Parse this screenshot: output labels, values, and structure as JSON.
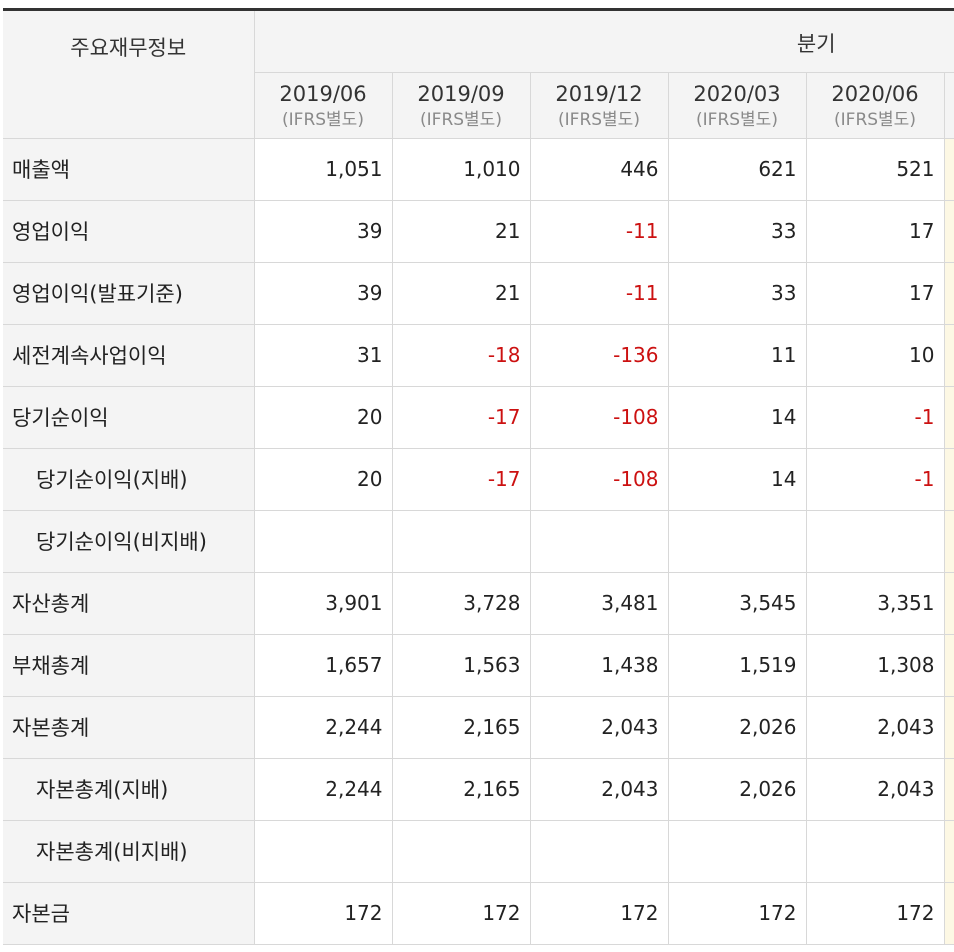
{
  "header": {
    "corner_label": "주요재무정보",
    "group_label": "분기",
    "periods": [
      {
        "date": "2019/06",
        "basis": "(IFRS별도)"
      },
      {
        "date": "2019/09",
        "basis": "(IFRS별도)"
      },
      {
        "date": "2019/12",
        "basis": "(IFRS별도)"
      },
      {
        "date": "2020/03",
        "basis": "(IFRS별도)"
      },
      {
        "date": "2020/06",
        "basis": "(IFRS별도)"
      }
    ]
  },
  "rows": [
    {
      "label": "매출액",
      "values": [
        "1,051",
        "1,010",
        "446",
        "621",
        "521"
      ]
    },
    {
      "label": "영업이익",
      "values": [
        "39",
        "21",
        "-11",
        "33",
        "17"
      ]
    },
    {
      "label": "영업이익(발표기준)",
      "values": [
        "39",
        "21",
        "-11",
        "33",
        "17"
      ]
    },
    {
      "label": "세전계속사업이익",
      "values": [
        "31",
        "-18",
        "-136",
        "11",
        "10"
      ]
    },
    {
      "label": "당기순이익",
      "values": [
        "20",
        "-17",
        "-108",
        "14",
        "-1"
      ]
    },
    {
      "label": "당기순이익(지배)",
      "values": [
        "20",
        "-17",
        "-108",
        "14",
        "-1"
      ]
    },
    {
      "label": "당기순이익(비지배)",
      "values": [
        "",
        "",
        "",
        "",
        ""
      ]
    },
    {
      "label": "자산총계",
      "values": [
        "3,901",
        "3,728",
        "3,481",
        "3,545",
        "3,351"
      ]
    },
    {
      "label": "부채총계",
      "values": [
        "1,657",
        "1,563",
        "1,438",
        "1,519",
        "1,308"
      ]
    },
    {
      "label": "자본총계",
      "values": [
        "2,244",
        "2,165",
        "2,043",
        "2,026",
        "2,043"
      ]
    },
    {
      "label": "자본총계(지배)",
      "values": [
        "2,244",
        "2,165",
        "2,043",
        "2,026",
        "2,043"
      ]
    },
    {
      "label": "자본총계(비지배)",
      "values": [
        "",
        "",
        "",
        "",
        ""
      ]
    },
    {
      "label": "자본금",
      "values": [
        "172",
        "172",
        "172",
        "172",
        "172"
      ]
    }
  ],
  "colors": {
    "negative": "#cc1111",
    "header_bg": "#f4f4f4",
    "border": "#d8d8d8"
  }
}
